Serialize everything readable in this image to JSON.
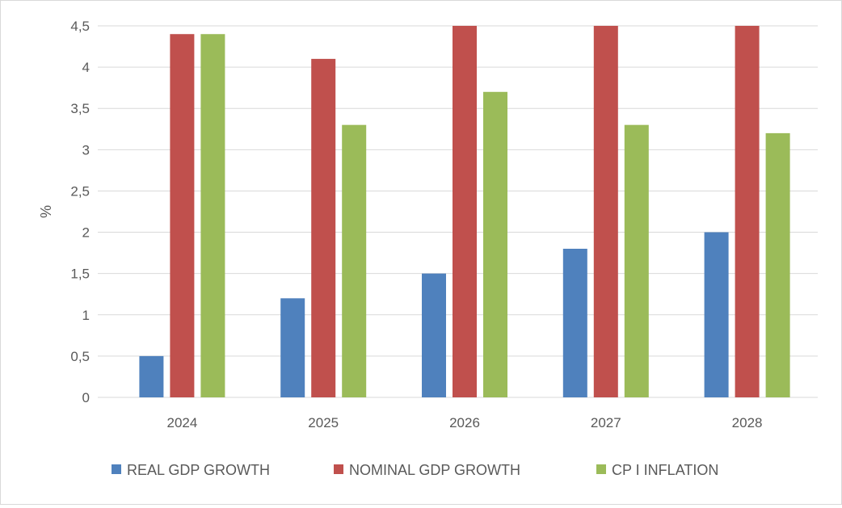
{
  "chart_data": {
    "type": "bar",
    "title": "",
    "xlabel": "",
    "ylabel": "%",
    "ylim": [
      0,
      4.5
    ],
    "yticks": [
      "0",
      "0,5",
      "1",
      "1,5",
      "2",
      "2,5",
      "3",
      "3,5",
      "4",
      "4,5"
    ],
    "categories": [
      "2024",
      "2025",
      "2026",
      "2027",
      "2028"
    ],
    "series": [
      {
        "name": "REAL GDP GROWTH",
        "color": "#4f81bd",
        "values": [
          0.5,
          1.2,
          1.5,
          1.8,
          2.0
        ]
      },
      {
        "name": "NOMINAL GDP GROWTH",
        "color": "#c0504d",
        "values": [
          4.4,
          4.1,
          4.5,
          4.5,
          4.5
        ]
      },
      {
        "name": "CP I INFLATION",
        "color": "#9bbb59",
        "values": [
          4.4,
          3.3,
          3.7,
          3.3,
          3.2
        ]
      }
    ],
    "grid": true,
    "legend": "bottom"
  }
}
